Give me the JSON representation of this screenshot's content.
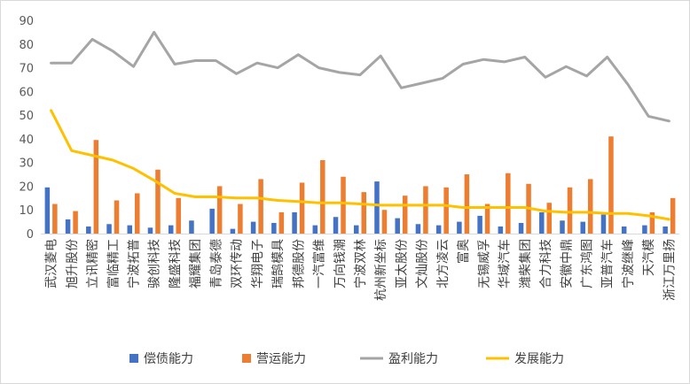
{
  "chart_data": {
    "type": "bar",
    "categories": [
      "武汉菱电",
      "旭升股份",
      "立讯精密",
      "富临精工",
      "宁波拓普",
      "骏创科技",
      "隆盛科技",
      "福耀集团",
      "青岛泰德",
      "双环传动",
      "华翔电子",
      "瑞鹄模具",
      "邦德股份",
      "一汽富维",
      "万向钱潮",
      "宁波双林",
      "杭州新坐标",
      "亚太股份",
      "文灿股份",
      "北方凌云",
      "富奥",
      "无锡威孚",
      "华域汽车",
      "潍柴集团",
      "合力科技",
      "安徽中鼎",
      "广东鸿图",
      "亚普汽车",
      "宁波继峰",
      "天汽模",
      "浙江万里扬"
    ],
    "series": [
      {
        "name": "偿债能力",
        "kind": "bar",
        "color": "#4472C4",
        "values": [
          19.5,
          6,
          3,
          4,
          3.5,
          2.5,
          3.5,
          5.5,
          10.5,
          2,
          5,
          4.5,
          9,
          3.5,
          7,
          3.5,
          22,
          6.5,
          4,
          3.5,
          5,
          7.5,
          3,
          4.5,
          9,
          5.5,
          5,
          8,
          3,
          3.5,
          3
        ]
      },
      {
        "name": "营运能力",
        "kind": "bar",
        "color": "#ED7D31",
        "values": [
          12.5,
          9.5,
          39.5,
          14,
          17,
          27,
          15,
          0,
          20,
          12.5,
          23,
          9,
          21.5,
          31,
          24,
          17.5,
          10,
          16,
          20,
          19.5,
          25,
          12.5,
          25.5,
          21,
          13,
          19.5,
          23,
          41,
          0,
          9,
          15
        ]
      },
      {
        "name": "盈利能力",
        "kind": "line",
        "color": "#A5A5A5",
        "values": [
          72,
          72,
          82,
          77,
          70.5,
          85,
          71.5,
          73,
          73,
          67.5,
          72,
          70,
          75.5,
          70,
          68,
          67,
          75,
          61.5,
          63.5,
          65.5,
          71.5,
          73.5,
          72.5,
          74.5,
          66,
          70.5,
          66.5,
          74.5,
          63,
          49.5,
          47.5
        ]
      },
      {
        "name": "发展能力",
        "kind": "line",
        "color": "#FFC000",
        "values": [
          52,
          35,
          33,
          31,
          27.5,
          22.5,
          17,
          15.5,
          15.5,
          15,
          15,
          14,
          13.5,
          13,
          13,
          12.5,
          12,
          12,
          12,
          12,
          11,
          11,
          11,
          11,
          9.5,
          9,
          9,
          8.5,
          8.5,
          7.5,
          6
        ]
      }
    ],
    "ylim": [
      0,
      90
    ],
    "yticks": [
      0,
      10,
      20,
      30,
      40,
      50,
      60,
      70,
      80,
      90
    ],
    "grid": false,
    "legend": "bottom"
  }
}
